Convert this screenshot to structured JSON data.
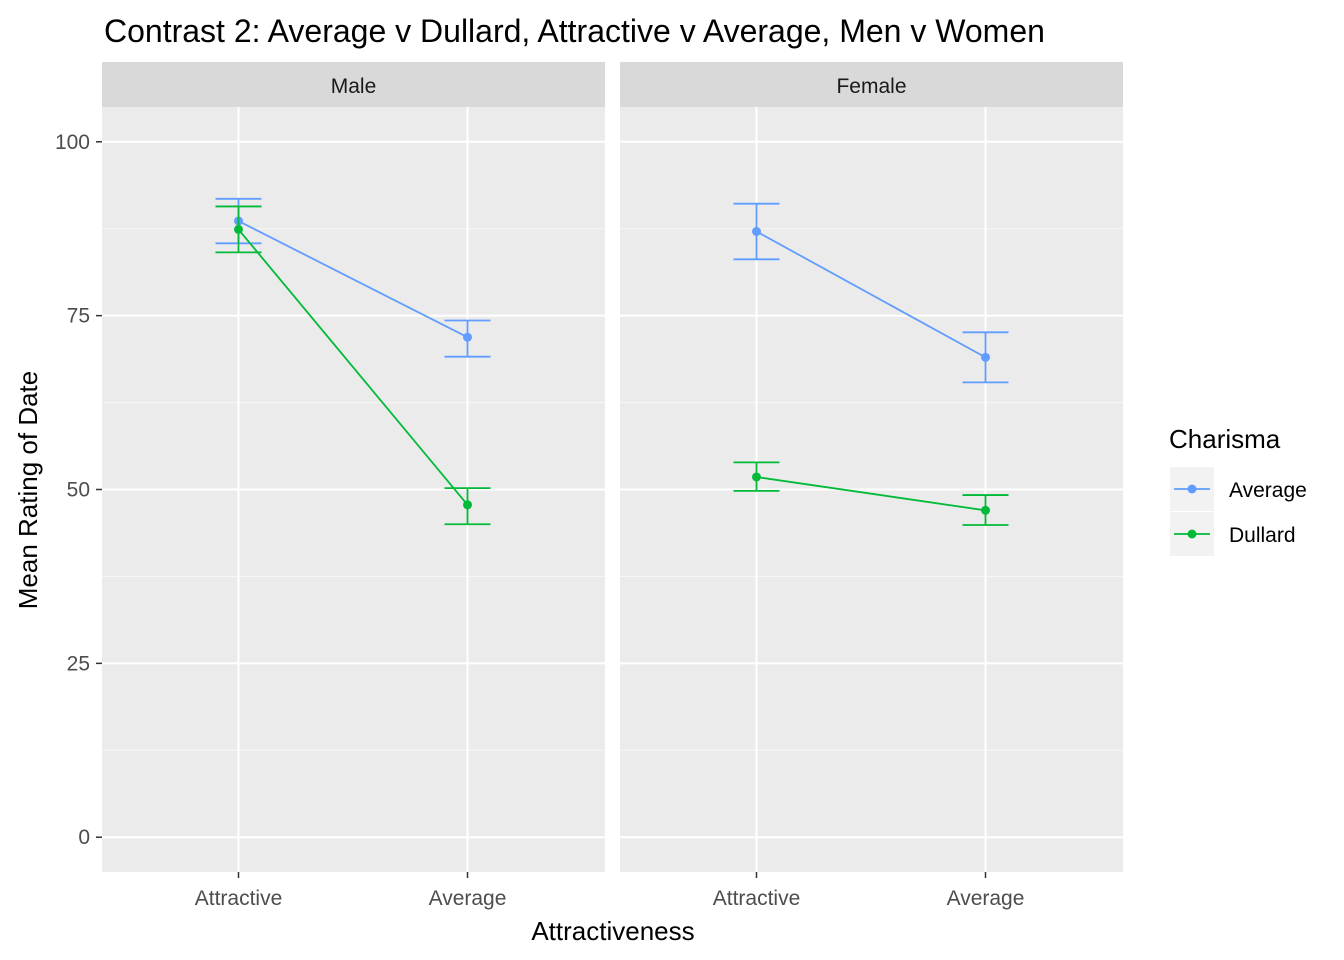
{
  "chart_data": {
    "type": "line",
    "title": "Contrast 2: Average v Dullard, Attractive v Average, Men v Women",
    "xlabel": "Attractiveness",
    "ylabel": "Mean Rating of Date",
    "categories": [
      "Attractive",
      "Average"
    ],
    "ylim": [
      -5,
      105
    ],
    "yticks": [
      0,
      25,
      50,
      75,
      100
    ],
    "legend": {
      "title": "Charisma",
      "placement": "right",
      "entries": [
        {
          "label": "Average",
          "color": "#619CFF"
        },
        {
          "label": "Dullard",
          "color": "#00BA38"
        }
      ]
    },
    "panels": [
      {
        "label": "Male",
        "series": [
          {
            "name": "Average",
            "color": "#619CFF",
            "values": [
              88.6,
              71.9
            ],
            "lower": [
              85.4,
              69.1
            ],
            "upper": [
              91.8,
              74.3
            ]
          },
          {
            "name": "Dullard",
            "color": "#00BA38",
            "values": [
              87.4,
              47.8
            ],
            "lower": [
              84.1,
              45.0
            ],
            "upper": [
              90.7,
              50.2
            ]
          }
        ]
      },
      {
        "label": "Female",
        "series": [
          {
            "name": "Average",
            "color": "#619CFF",
            "values": [
              87.1,
              69.0
            ],
            "lower": [
              83.1,
              65.4
            ],
            "upper": [
              91.1,
              72.6
            ]
          },
          {
            "name": "Dullard",
            "color": "#00BA38",
            "values": [
              51.8,
              47.0
            ],
            "lower": [
              49.8,
              44.9
            ],
            "upper": [
              53.9,
              49.2
            ]
          }
        ]
      }
    ]
  }
}
